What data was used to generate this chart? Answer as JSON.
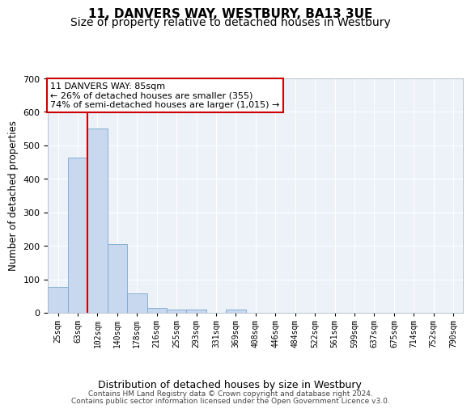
{
  "title": "11, DANVERS WAY, WESTBURY, BA13 3UE",
  "subtitle": "Size of property relative to detached houses in Westbury",
  "xlabel": "Distribution of detached houses by size in Westbury",
  "ylabel": "Number of detached properties",
  "bar_values": [
    78,
    463,
    550,
    204,
    57,
    15,
    10,
    10,
    0,
    10,
    0,
    0,
    0,
    0,
    0,
    0,
    0,
    0,
    0,
    0,
    0
  ],
  "bar_labels": [
    "25sqm",
    "63sqm",
    "102sqm",
    "140sqm",
    "178sqm",
    "216sqm",
    "255sqm",
    "293sqm",
    "331sqm",
    "369sqm",
    "408sqm",
    "446sqm",
    "484sqm",
    "522sqm",
    "561sqm",
    "599sqm",
    "637sqm",
    "675sqm",
    "714sqm",
    "752sqm",
    "790sqm"
  ],
  "bar_color": "#c8d8ee",
  "bar_edge_color": "#7aa8d0",
  "vline_color": "#cc0000",
  "vline_pos": 1.5,
  "annotation_line1": "11 DANVERS WAY: 85sqm",
  "annotation_line2": "← 26% of detached houses are smaller (355)",
  "annotation_line3": "74% of semi-detached houses are larger (1,015) →",
  "annotation_box_color": "#ffffff",
  "annotation_box_edge": "#cc0000",
  "ylim": [
    0,
    700
  ],
  "yticks": [
    0,
    100,
    200,
    300,
    400,
    500,
    600,
    700
  ],
  "background_color": "#edf1f8",
  "grid_color": "#ffffff",
  "footer_line1": "Contains HM Land Registry data © Crown copyright and database right 2024.",
  "footer_line2": "Contains public sector information licensed under the Open Government Licence v3.0.",
  "title_fontsize": 11,
  "subtitle_fontsize": 10,
  "xlabel_fontsize": 9,
  "ylabel_fontsize": 8.5,
  "tick_fontsize": 7,
  "footer_fontsize": 6.5
}
